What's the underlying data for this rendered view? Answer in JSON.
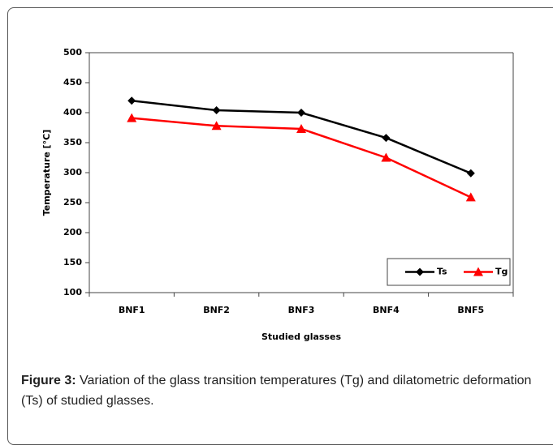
{
  "chart_data": {
    "type": "line",
    "y_label": "Temperature [°C]",
    "x_label": "Studied glasses",
    "categories": [
      "BNF1",
      "BNF2",
      "BNF3",
      "BNF4",
      "BNF5"
    ],
    "series": [
      {
        "name": "Ts",
        "color": "#000000",
        "marker": "diamond",
        "values": [
          420,
          404,
          400,
          358,
          299
        ]
      },
      {
        "name": "Tg",
        "color": "#ff0000",
        "marker": "triangle",
        "values": [
          391,
          378,
          373,
          325,
          259
        ]
      }
    ],
    "ylim": [
      100,
      500
    ],
    "yticks": [
      100,
      150,
      200,
      250,
      300,
      350,
      400,
      450,
      500
    ],
    "legend": "lower right"
  },
  "caption": {
    "label": "Figure 3:",
    "text": "Variation of the glass transition temperatures (Tg) and dilatometric deformation (Ts) of studied glasses."
  }
}
